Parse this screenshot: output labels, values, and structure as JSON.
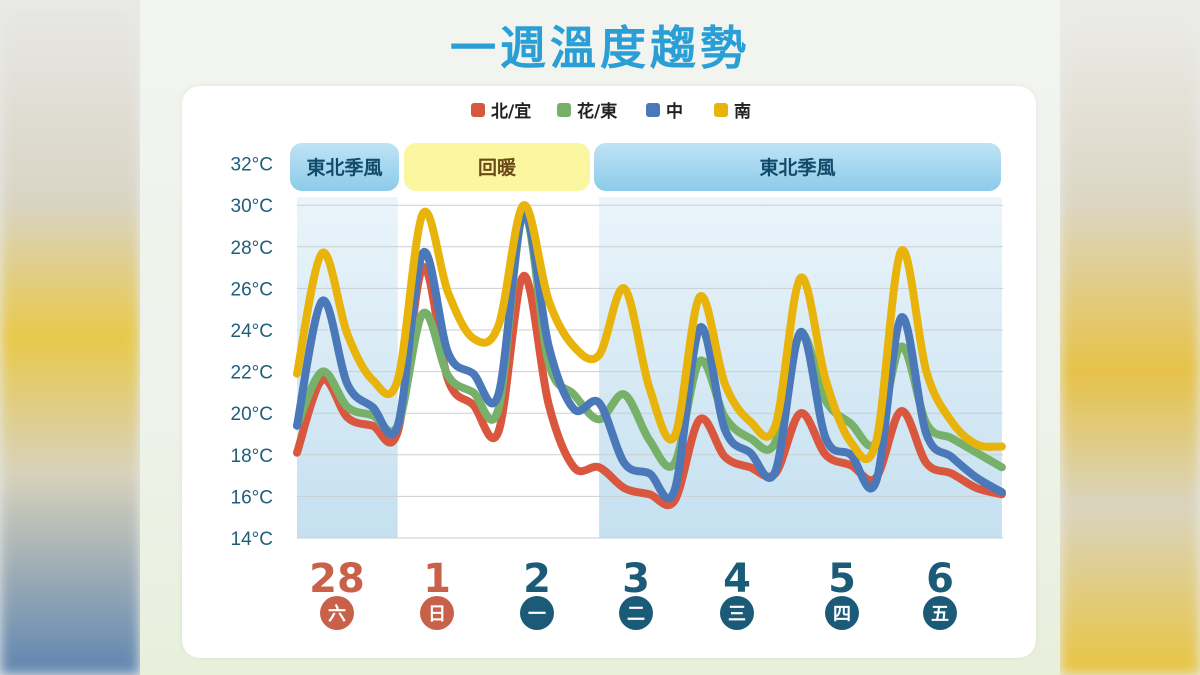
{
  "title": "一週溫度趨勢",
  "colors": {
    "north": "#d9573f",
    "east": "#76b069",
    "central": "#4a78b8",
    "south": "#e8b40c"
  },
  "chart_data": {
    "type": "line",
    "title": "一週溫度趨勢",
    "y_ticks": [
      "14°C",
      "16°C",
      "18°C",
      "20°C",
      "22°C",
      "24°C",
      "26°C",
      "28°C",
      "30°C",
      "32°C"
    ],
    "ylim": [
      14,
      32
    ],
    "grid": true,
    "legend_position": "top",
    "x_day_labels": [
      {
        "date": "28",
        "weekday": "六",
        "weekend": true
      },
      {
        "date": "1",
        "weekday": "日",
        "weekend": true
      },
      {
        "date": "2",
        "weekday": "一",
        "weekend": false
      },
      {
        "date": "3",
        "weekday": "二",
        "weekend": false
      },
      {
        "date": "4",
        "weekday": "三",
        "weekend": false
      },
      {
        "date": "5",
        "weekday": "四",
        "weekend": false
      },
      {
        "date": "6",
        "weekday": "五",
        "weekend": false
      }
    ],
    "periods": [
      {
        "label": "東北季風",
        "type": "monsoon",
        "from_day": 0,
        "to_day": 1
      },
      {
        "label": "回暖",
        "type": "warm",
        "from_day": 1,
        "to_day": 3
      },
      {
        "label": "東北季風",
        "type": "monsoon",
        "from_day": 3,
        "to_day": 7
      }
    ],
    "series": [
      {
        "name": "北/宜",
        "color": "#d9573f",
        "x": [
          0,
          0.25,
          0.5,
          0.75,
          1,
          1.25,
          1.5,
          1.75,
          2,
          2.25,
          2.5,
          2.75,
          3,
          3.25,
          3.5,
          3.75,
          4,
          4.25,
          4.5,
          4.75,
          5,
          5.25,
          5.5,
          5.75,
          6,
          6.25,
          6.5,
          6.75,
          7
        ],
        "values": [
          18.1,
          21.6,
          19.8,
          19.4,
          19.1,
          27.0,
          21.6,
          20.4,
          19.1,
          26.6,
          20.4,
          17.4,
          17.4,
          16.4,
          16.1,
          15.8,
          19.7,
          17.9,
          17.4,
          17.1,
          20.0,
          18.0,
          17.5,
          16.9,
          20.1,
          17.6,
          17.1,
          16.4,
          16.1
        ]
      },
      {
        "name": "花/東",
        "color": "#76b069",
        "x": [
          0,
          0.25,
          0.5,
          0.75,
          1,
          1.25,
          1.5,
          1.75,
          2,
          2.25,
          2.5,
          2.75,
          3,
          3.25,
          3.5,
          3.75,
          4,
          4.25,
          4.5,
          4.75,
          5,
          5.25,
          5.5,
          5.75,
          6,
          6.25,
          6.5,
          6.75,
          7
        ],
        "values": [
          19.4,
          22.0,
          20.3,
          19.9,
          19.4,
          24.8,
          21.8,
          21.0,
          20.2,
          29.6,
          22.4,
          20.9,
          19.7,
          20.9,
          18.7,
          17.6,
          22.5,
          19.8,
          18.8,
          18.6,
          23.8,
          20.6,
          19.5,
          18.6,
          23.2,
          19.5,
          18.8,
          18.1,
          17.4
        ]
      },
      {
        "name": "中",
        "color": "#4a78b8",
        "x": [
          0,
          0.25,
          0.5,
          0.75,
          1,
          1.25,
          1.5,
          1.75,
          2,
          2.25,
          2.5,
          2.75,
          3,
          3.25,
          3.5,
          3.75,
          4,
          4.25,
          4.5,
          4.75,
          5,
          5.25,
          5.5,
          5.75,
          6,
          6.25,
          6.5,
          6.75,
          7
        ],
        "values": [
          19.4,
          25.4,
          21.4,
          20.3,
          19.4,
          27.7,
          22.9,
          21.9,
          20.9,
          29.6,
          23.2,
          20.2,
          20.5,
          17.6,
          17.1,
          16.3,
          24.1,
          19.2,
          18.1,
          17.2,
          23.9,
          18.8,
          18.0,
          16.7,
          24.6,
          19.0,
          17.9,
          16.9,
          16.2
        ]
      },
      {
        "name": "南",
        "color": "#e8b40c",
        "x": [
          0,
          0.25,
          0.5,
          0.75,
          1,
          1.25,
          1.5,
          1.75,
          2,
          2.25,
          2.5,
          2.75,
          3,
          3.25,
          3.5,
          3.75,
          4,
          4.25,
          4.5,
          4.75,
          5,
          5.25,
          5.5,
          5.75,
          6,
          6.25,
          6.5,
          6.75,
          7
        ],
        "values": [
          21.9,
          27.7,
          23.8,
          21.6,
          21.6,
          29.6,
          25.8,
          23.6,
          24.2,
          30.0,
          25.4,
          23.2,
          22.8,
          26.0,
          21.2,
          18.9,
          25.6,
          21.4,
          19.6,
          19.4,
          26.5,
          21.6,
          18.6,
          18.6,
          27.8,
          22.0,
          19.6,
          18.5,
          18.4
        ]
      }
    ]
  }
}
